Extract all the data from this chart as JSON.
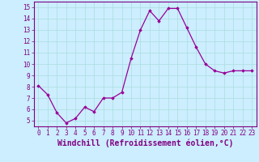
{
  "x": [
    0,
    1,
    2,
    3,
    4,
    5,
    6,
    7,
    8,
    9,
    10,
    11,
    12,
    13,
    14,
    15,
    16,
    17,
    18,
    19,
    20,
    21,
    22,
    23
  ],
  "y": [
    8.1,
    7.3,
    5.7,
    4.8,
    5.2,
    6.2,
    5.8,
    7.0,
    7.0,
    7.5,
    10.5,
    13.0,
    14.7,
    13.8,
    14.9,
    14.9,
    13.2,
    11.5,
    10.0,
    9.4,
    9.2,
    9.4,
    9.4,
    9.4
  ],
  "line_color": "#990099",
  "marker": "D",
  "marker_size": 1.8,
  "line_width": 0.9,
  "xlabel": "Windchill (Refroidissement éolien,°C)",
  "xlim": [
    -0.5,
    23.5
  ],
  "ylim": [
    4.5,
    15.5
  ],
  "yticks": [
    5,
    6,
    7,
    8,
    9,
    10,
    11,
    12,
    13,
    14,
    15
  ],
  "xticks": [
    0,
    1,
    2,
    3,
    4,
    5,
    6,
    7,
    8,
    9,
    10,
    11,
    12,
    13,
    14,
    15,
    16,
    17,
    18,
    19,
    20,
    21,
    22,
    23
  ],
  "bg_color": "#cceeff",
  "grid_color": "#aadddd",
  "tick_label_fontsize": 5.5,
  "xlabel_fontsize": 7.0,
  "label_color": "#800080"
}
